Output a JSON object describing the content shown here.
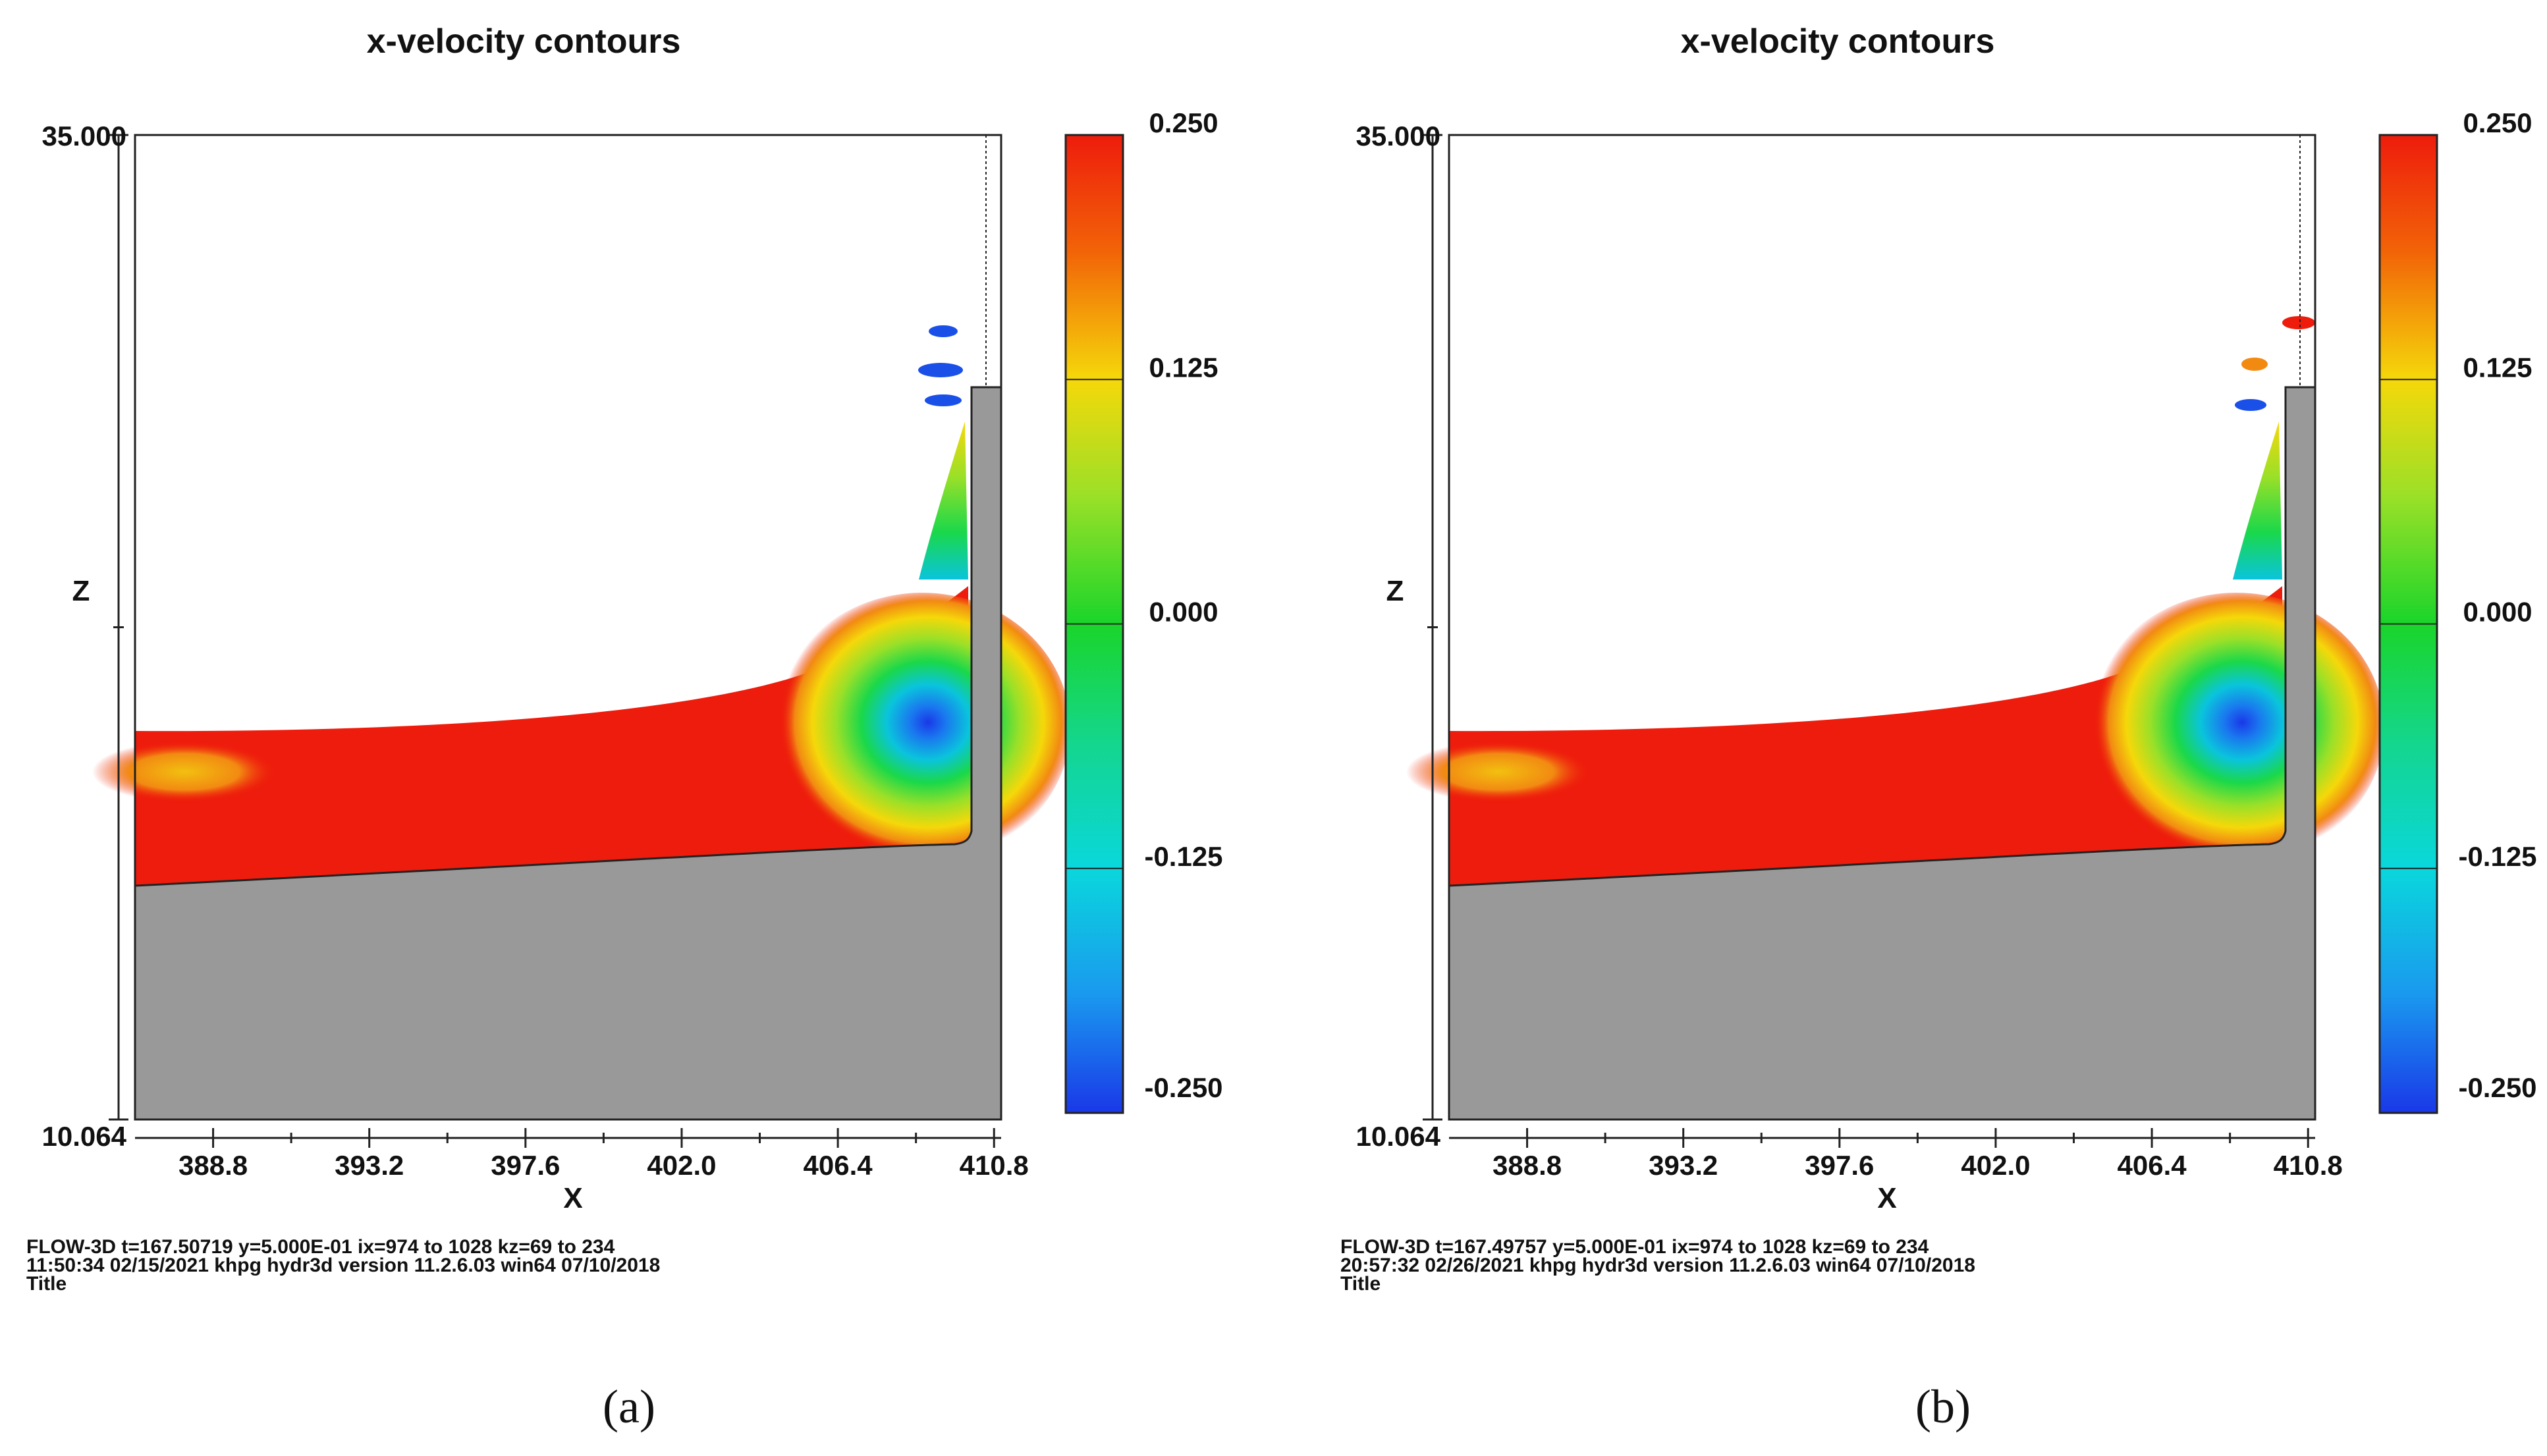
{
  "chart_data": [
    {
      "type": "heatmap",
      "panel_label": "(a)",
      "title": "x-velocity contours",
      "xlabel": "X",
      "ylabel": "Z",
      "xlim": [
        386.6,
        411.0
      ],
      "ylim": [
        10.064,
        35.0
      ],
      "x_ticks": [
        "388.8",
        "393.2",
        "397.6",
        "402.0",
        "406.4",
        "410.8"
      ],
      "y_ticks": [
        "35.000",
        "10.064"
      ],
      "colorbar": {
        "range": [
          -0.25,
          0.25
        ],
        "ticks": [
          "0.250",
          "0.125",
          "0.000",
          "-0.125",
          "-0.250"
        ]
      },
      "footer": [
        "FLOW-3D  t=167.50719  y=5.000E-01  ix=974 to 1028  kz=69 to 234",
        "11:50:34  02/15/2021 khpg       hydr3d    version  11.2.6.03 win64     07/10/2018",
        "Title"
      ]
    },
    {
      "type": "heatmap",
      "panel_label": "(b)",
      "title": "x-velocity contours",
      "xlabel": "X",
      "ylabel": "Z",
      "xlim": [
        386.6,
        411.0
      ],
      "ylim": [
        10.064,
        35.0
      ],
      "x_ticks": [
        "388.8",
        "393.2",
        "397.6",
        "402.0",
        "406.4",
        "410.8"
      ],
      "y_ticks": [
        "35.000",
        "10.064"
      ],
      "colorbar": {
        "range": [
          -0.25,
          0.25
        ],
        "ticks": [
          "0.250",
          "0.125",
          "0.000",
          "-0.125",
          "-0.250"
        ]
      },
      "footer": [
        "FLOW-3D  t=167.49757  y=5.000E-01  ix=974 to 1028  kz=69 to 234",
        "20:57:32  02/26/2021 khpg       hydr3d    version  11.2.6.03 win64     07/10/2018",
        "Title"
      ]
    }
  ]
}
